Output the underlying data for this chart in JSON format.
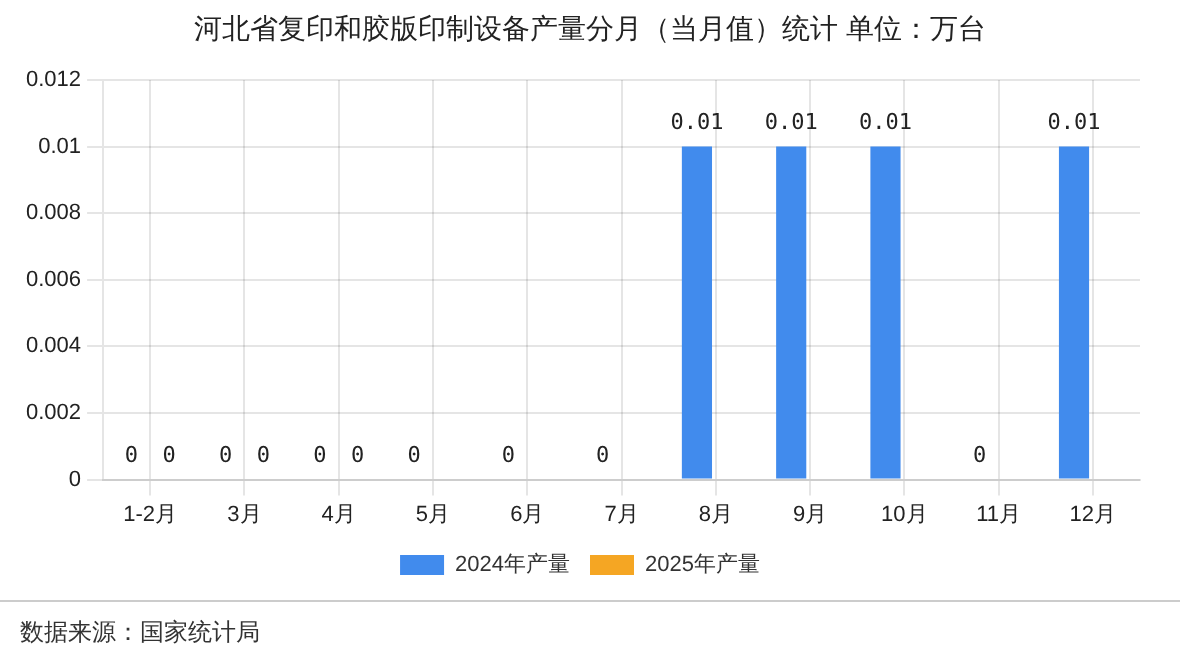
{
  "chart_data": {
    "type": "bar",
    "title": "河北省复印和胶版印制设备产量分月（当月值）统计 单位：万台",
    "categories": [
      "1-2月",
      "3月",
      "4月",
      "5月",
      "6月",
      "7月",
      "8月",
      "9月",
      "10月",
      "11月",
      "12月"
    ],
    "series": [
      {
        "name": "2024年产量",
        "color": "#418bed",
        "values": [
          0,
          0,
          0,
          0,
          0,
          0,
          0.01,
          0.01,
          0.01,
          0,
          0.01
        ]
      },
      {
        "name": "2025年产量",
        "color": "#f5a623",
        "values": [
          0,
          0,
          0,
          null,
          null,
          null,
          null,
          null,
          null,
          null,
          null
        ]
      }
    ],
    "ylim": [
      0,
      0.012
    ],
    "yticks": [
      0,
      0.002,
      0.004,
      0.006,
      0.008,
      0.01,
      0.012
    ],
    "grid": true,
    "legend": "bottom",
    "data_labels": true,
    "annotations": [
      "数据来源：国家统计局"
    ]
  }
}
